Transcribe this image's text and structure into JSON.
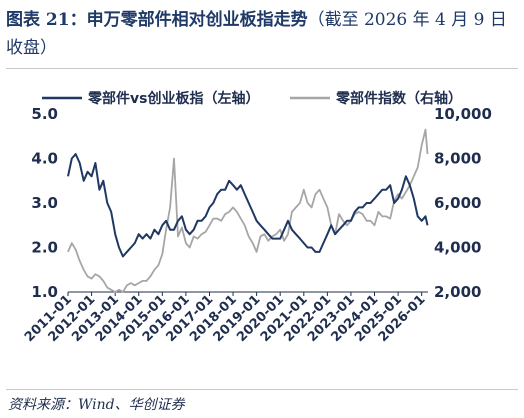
{
  "figure": {
    "title_prefix": "图表 21：",
    "title_main": "申万零部件相对创业板指走势",
    "title_suffix": "（截至 2026 年 4 月 9 日收盘）",
    "source": "资料来源：Wind、华创证券"
  },
  "chart_data": {
    "type": "line",
    "title": "申万零部件相对创业板指走势",
    "xlabel": "",
    "ylabel": "",
    "x_ticks": [
      "2011-01",
      "2012-01",
      "2013-01",
      "2014-01",
      "2015-01",
      "2016-01",
      "2017-01",
      "2018-01",
      "2019-01",
      "2020-01",
      "2021-01",
      "2022-01",
      "2023-01",
      "2024-01",
      "2025-01",
      "2026-01"
    ],
    "x_range": [
      "2011-01-01",
      "2026-04-09"
    ],
    "y_left": {
      "lim": [
        1.0,
        5.0
      ],
      "ticks": [
        "1.0",
        "2.0",
        "3.0",
        "4.0",
        "5.0"
      ]
    },
    "y_right": {
      "lim": [
        2000,
        10000
      ],
      "ticks": [
        "2,000",
        "4,000",
        "6,000",
        "8,000",
        "10,000"
      ]
    },
    "grid": false,
    "legend_position": "top",
    "colors": {
      "ratio": "#1f3864",
      "index": "#a6a6a6"
    },
    "series": [
      {
        "name": "零部件vs创业板指（左轴）",
        "axis": "left",
        "color": "#1f3864",
        "x": [
          "2011-01",
          "2011-03",
          "2011-05",
          "2011-07",
          "2011-09",
          "2011-11",
          "2012-01",
          "2012-03",
          "2012-05",
          "2012-07",
          "2012-09",
          "2012-11",
          "2013-01",
          "2013-03",
          "2013-05",
          "2013-07",
          "2013-09",
          "2013-11",
          "2014-01",
          "2014-03",
          "2014-05",
          "2014-07",
          "2014-09",
          "2014-11",
          "2015-01",
          "2015-03",
          "2015-05",
          "2015-07",
          "2015-09",
          "2015-11",
          "2016-01",
          "2016-03",
          "2016-05",
          "2016-07",
          "2016-09",
          "2016-11",
          "2017-01",
          "2017-03",
          "2017-05",
          "2017-07",
          "2017-09",
          "2017-11",
          "2018-01",
          "2018-03",
          "2018-05",
          "2018-07",
          "2018-09",
          "2018-11",
          "2019-01",
          "2019-03",
          "2019-05",
          "2019-07",
          "2019-09",
          "2019-11",
          "2020-01",
          "2020-03",
          "2020-05",
          "2020-07",
          "2020-09",
          "2020-11",
          "2021-01",
          "2021-03",
          "2021-05",
          "2021-07",
          "2021-09",
          "2021-11",
          "2022-01",
          "2022-03",
          "2022-05",
          "2022-07",
          "2022-09",
          "2022-11",
          "2023-01",
          "2023-03",
          "2023-05",
          "2023-07",
          "2023-09",
          "2023-11",
          "2024-01",
          "2024-03",
          "2024-05",
          "2024-07",
          "2024-09",
          "2024-11",
          "2025-01",
          "2025-03",
          "2025-05",
          "2025-07",
          "2025-09",
          "2025-11",
          "2026-01",
          "2026-03",
          "2026-04"
        ],
        "y": [
          3.6,
          4.0,
          4.1,
          3.9,
          3.5,
          3.7,
          3.6,
          3.9,
          3.3,
          3.5,
          3.0,
          2.8,
          2.3,
          2.0,
          1.8,
          1.9,
          2.0,
          2.1,
          2.3,
          2.2,
          2.3,
          2.2,
          2.4,
          2.3,
          2.5,
          2.6,
          2.4,
          2.4,
          2.6,
          2.7,
          2.4,
          2.3,
          2.4,
          2.6,
          2.6,
          2.7,
          2.9,
          3.0,
          3.2,
          3.3,
          3.3,
          3.5,
          3.4,
          3.3,
          3.4,
          3.2,
          3.0,
          2.8,
          2.6,
          2.5,
          2.4,
          2.3,
          2.2,
          2.2,
          2.2,
          2.4,
          2.6,
          2.4,
          2.3,
          2.2,
          2.1,
          2.0,
          2.0,
          1.9,
          1.9,
          2.1,
          2.3,
          2.5,
          2.3,
          2.4,
          2.5,
          2.6,
          2.6,
          2.8,
          2.9,
          2.9,
          3.0,
          3.0,
          3.1,
          3.2,
          3.3,
          3.3,
          3.4,
          3.0,
          3.1,
          3.3,
          3.6,
          3.4,
          3.1,
          2.7,
          2.6,
          2.7,
          2.5
        ]
      },
      {
        "name": "零部件指数（右轴）",
        "axis": "right",
        "color": "#a6a6a6",
        "x": [
          "2011-01",
          "2011-03",
          "2011-05",
          "2011-07",
          "2011-09",
          "2011-11",
          "2012-01",
          "2012-03",
          "2012-05",
          "2012-07",
          "2012-09",
          "2012-11",
          "2013-01",
          "2013-03",
          "2013-05",
          "2013-07",
          "2013-09",
          "2013-11",
          "2014-01",
          "2014-03",
          "2014-05",
          "2014-07",
          "2014-09",
          "2014-11",
          "2015-01",
          "2015-03",
          "2015-05",
          "2015-07",
          "2015-09",
          "2015-11",
          "2016-01",
          "2016-03",
          "2016-05",
          "2016-07",
          "2016-09",
          "2016-11",
          "2017-01",
          "2017-03",
          "2017-05",
          "2017-07",
          "2017-09",
          "2017-11",
          "2018-01",
          "2018-03",
          "2018-05",
          "2018-07",
          "2018-09",
          "2018-11",
          "2019-01",
          "2019-03",
          "2019-05",
          "2019-07",
          "2019-09",
          "2019-11",
          "2020-01",
          "2020-03",
          "2020-05",
          "2020-07",
          "2020-09",
          "2020-11",
          "2021-01",
          "2021-03",
          "2021-05",
          "2021-07",
          "2021-09",
          "2021-11",
          "2022-01",
          "2022-03",
          "2022-05",
          "2022-07",
          "2022-09",
          "2022-11",
          "2023-01",
          "2023-03",
          "2023-05",
          "2023-07",
          "2023-09",
          "2023-11",
          "2024-01",
          "2024-03",
          "2024-05",
          "2024-07",
          "2024-09",
          "2024-11",
          "2025-01",
          "2025-03",
          "2025-05",
          "2025-07",
          "2025-09",
          "2025-11",
          "2026-01",
          "2026-03",
          "2026-04"
        ],
        "y": [
          3800,
          4200,
          3900,
          3400,
          3000,
          2700,
          2600,
          2800,
          2700,
          2500,
          2200,
          2100,
          2000,
          2100,
          2000,
          2300,
          2400,
          2300,
          2400,
          2500,
          2500,
          2700,
          3000,
          3200,
          3700,
          4800,
          5800,
          8000,
          4500,
          4900,
          4200,
          4000,
          4500,
          4400,
          4600,
          4700,
          5000,
          5300,
          5300,
          5200,
          5500,
          5600,
          5800,
          5600,
          5300,
          5000,
          4500,
          4200,
          3800,
          4500,
          4600,
          4300,
          4500,
          4600,
          4800,
          4300,
          4600,
          5600,
          5800,
          6000,
          6600,
          6000,
          5800,
          6400,
          6600,
          6200,
          5800,
          5000,
          4600,
          5500,
          5200,
          5000,
          5200,
          5500,
          5600,
          5500,
          5200,
          5200,
          5000,
          5600,
          5400,
          5400,
          5300,
          6100,
          6400,
          6200,
          6500,
          6800,
          7200,
          7600,
          8600,
          9300,
          8200
        ]
      }
    ]
  }
}
